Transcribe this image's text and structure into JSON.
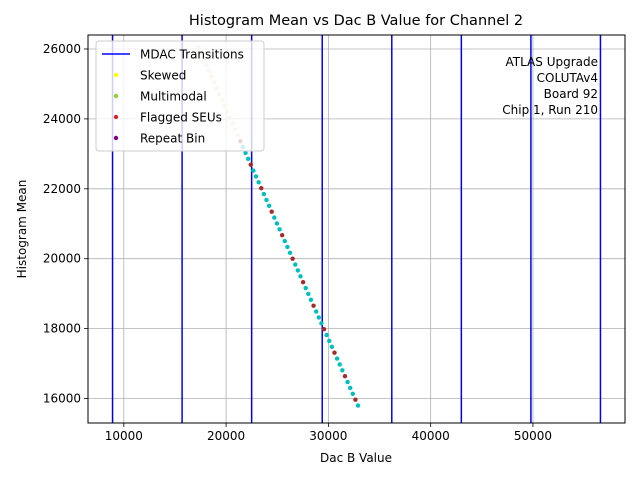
{
  "chart_data": {
    "type": "scatter",
    "title": "Histogram Mean vs Dac B Value for Channel 2",
    "xlabel": "Dac B Value",
    "ylabel": "Histogram Mean",
    "xlim": [
      6500,
      59000
    ],
    "ylim": [
      15300,
      26400
    ],
    "xticks": [
      10000,
      20000,
      30000,
      40000,
      50000
    ],
    "yticks": [
      16000,
      18000,
      20000,
      22000,
      24000,
      26000
    ],
    "xtick_labels": [
      "10000",
      "20000",
      "30000",
      "40000",
      "50000"
    ],
    "ytick_labels": [
      "16000",
      "18000",
      "20000",
      "22000",
      "24000",
      "26000"
    ],
    "grid": true,
    "legend_position": "top-left",
    "legend": [
      {
        "label": "MDAC Transitions",
        "kind": "line",
        "color": "#0000ff"
      },
      {
        "label": "Skewed",
        "kind": "marker",
        "color": "#ffff00"
      },
      {
        "label": "Multimodal",
        "kind": "marker",
        "color": "#9acd32"
      },
      {
        "label": "Flagged SEUs",
        "kind": "marker",
        "color": "#d62728"
      },
      {
        "label": "Repeat Bin",
        "kind": "marker",
        "color": "#800080"
      }
    ],
    "mdac_transitions": [
      8900,
      15700,
      22500,
      29400,
      36200,
      43000,
      49800,
      56600
    ],
    "main_series": {
      "color": "#00bfbf",
      "flag_color": "#a52a2a",
      "light_color": "#f4cbb4",
      "x_start": 17300,
      "x_end": 32900,
      "y_start": 26050,
      "y_end": 15800,
      "count": 62,
      "light_until_x": 21300,
      "flag_every": 4
    },
    "annotation": [
      "ATLAS Upgrade",
      "COLUTAv4",
      "Board 92",
      "Chip 1, Run 210"
    ]
  }
}
